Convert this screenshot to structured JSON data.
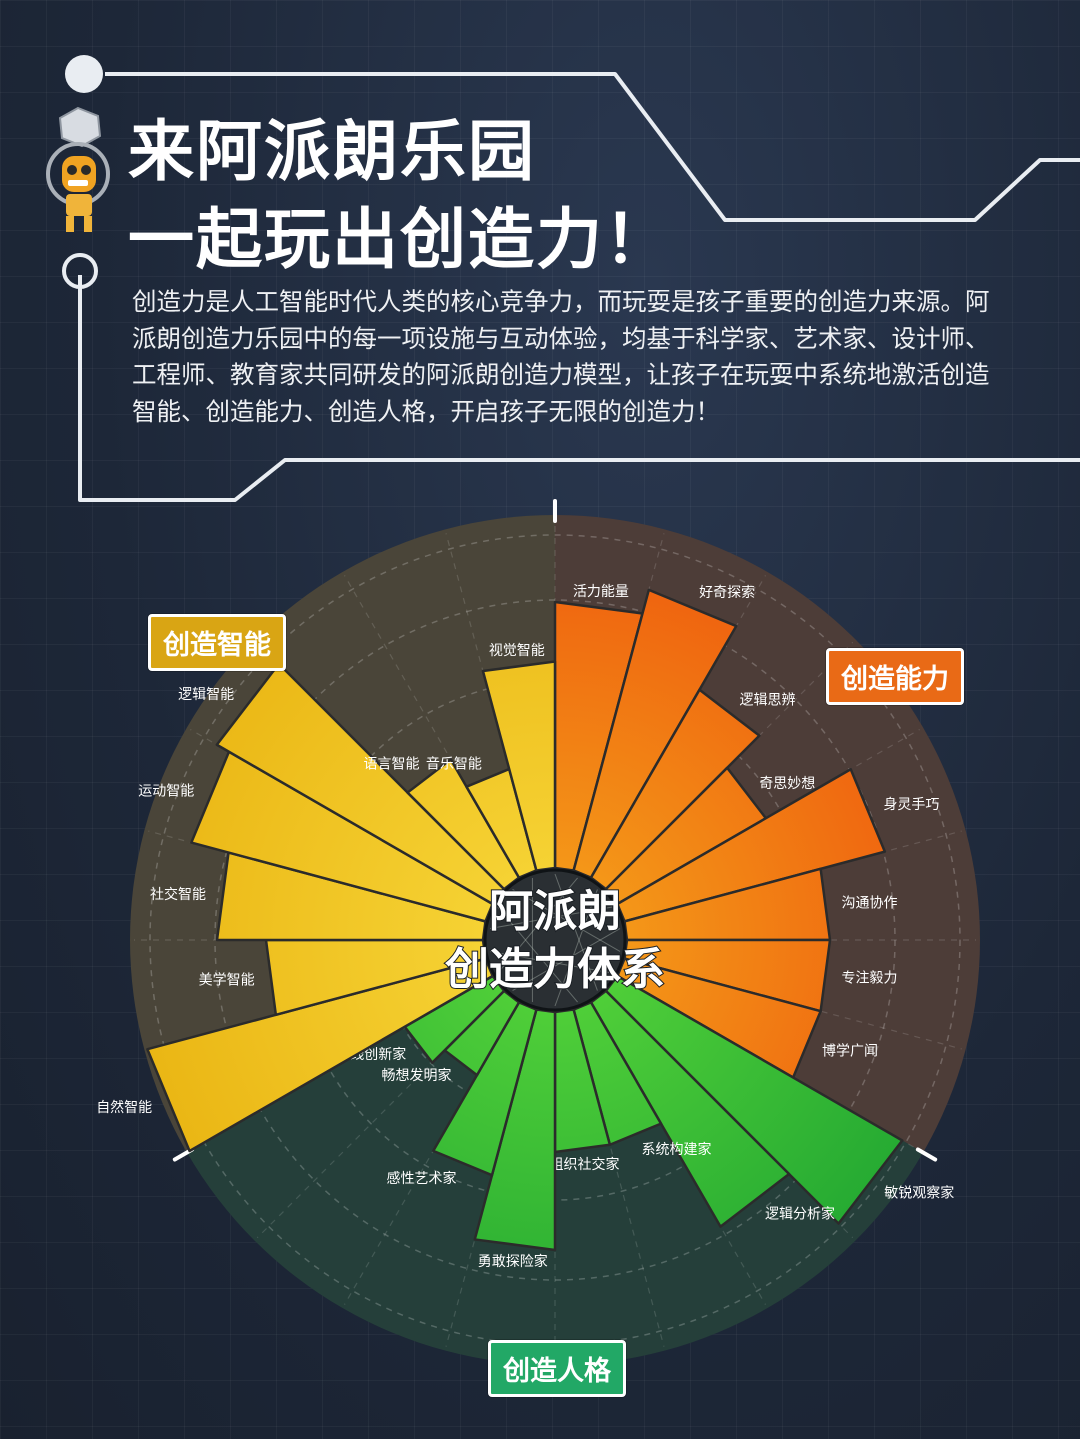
{
  "title_lines": [
    "来阿派朗乐园",
    "一起玩出创造力！"
  ],
  "description": "创造力是人工智能时代人类的核心竞争力，而玩耍是孩子重要的创造力来源。阿派朗创造力乐园中的每一项设施与互动体验，均基于科学家、艺术家、设计师、工程师、教育家共同研发的阿派朗创造力模型，让孩子在玩耍中系统地激活创造智能、创造能力、创造人格，开启孩子无限的创造力！",
  "center_label_lines": [
    "阿派朗",
    "创造力体系"
  ],
  "categories": {
    "zhineng": {
      "label": "创造智能",
      "color": "#d9a514"
    },
    "nengli": {
      "label": "创造能力",
      "color": "#e96a16"
    },
    "renge": {
      "label": "创造人格",
      "color": "#22a866"
    }
  },
  "colors": {
    "background": "#1f2a3b",
    "sector_zhineng": "#4a4539",
    "sector_nengli": "#4d3d38",
    "sector_renge": "#253f3a",
    "yellow_bar": "#f2c81d",
    "orange_bar": "#f07314",
    "green_bar": "#37c02c"
  },
  "chart_data": {
    "type": "radial-bar",
    "title": "阿派朗创造力体系",
    "series": [
      {
        "name": "创造能力",
        "items": [
          {
            "label": "活力能量",
            "value": 0.76
          },
          {
            "label": "好奇探索",
            "value": 0.83
          },
          {
            "label": "逻辑思辨",
            "value": 0.62
          },
          {
            "label": "奇思妙想",
            "value": 0.49
          },
          {
            "label": "身灵手巧",
            "value": 0.77
          },
          {
            "label": "沟通协作",
            "value": 0.58
          },
          {
            "label": "专注毅力",
            "value": 0.58
          },
          {
            "label": "博学广闻",
            "value": 0.58
          }
        ]
      },
      {
        "name": "创造人格",
        "items": [
          {
            "label": "敏锐观察家",
            "value": 0.94
          },
          {
            "label": "逻辑分析家",
            "value": 0.74
          },
          {
            "label": "系统构建家",
            "value": 0.4
          },
          {
            "label": "组织社交家",
            "value": 0.4
          },
          {
            "label": "勇敢探险家",
            "value": 0.68
          },
          {
            "label": "感性艺术家",
            "value": 0.49
          },
          {
            "label": "畅想发明家",
            "value": 0.24
          },
          {
            "label": "实践创新家",
            "value": 0.29
          }
        ]
      },
      {
        "name": "创造智能",
        "items": [
          {
            "label": "自然智能",
            "value": 1.0
          },
          {
            "label": "美学智能",
            "value": 0.62
          },
          {
            "label": "社交智能",
            "value": 0.76
          },
          {
            "label": "运动智能",
            "value": 0.87
          },
          {
            "label": "逻辑智能",
            "value": 0.91
          },
          {
            "label": "语言智能",
            "value": 0.39
          },
          {
            "label": "音乐智能",
            "value": 0.3
          },
          {
            "label": "视觉智能",
            "value": 0.59
          }
        ]
      }
    ]
  }
}
